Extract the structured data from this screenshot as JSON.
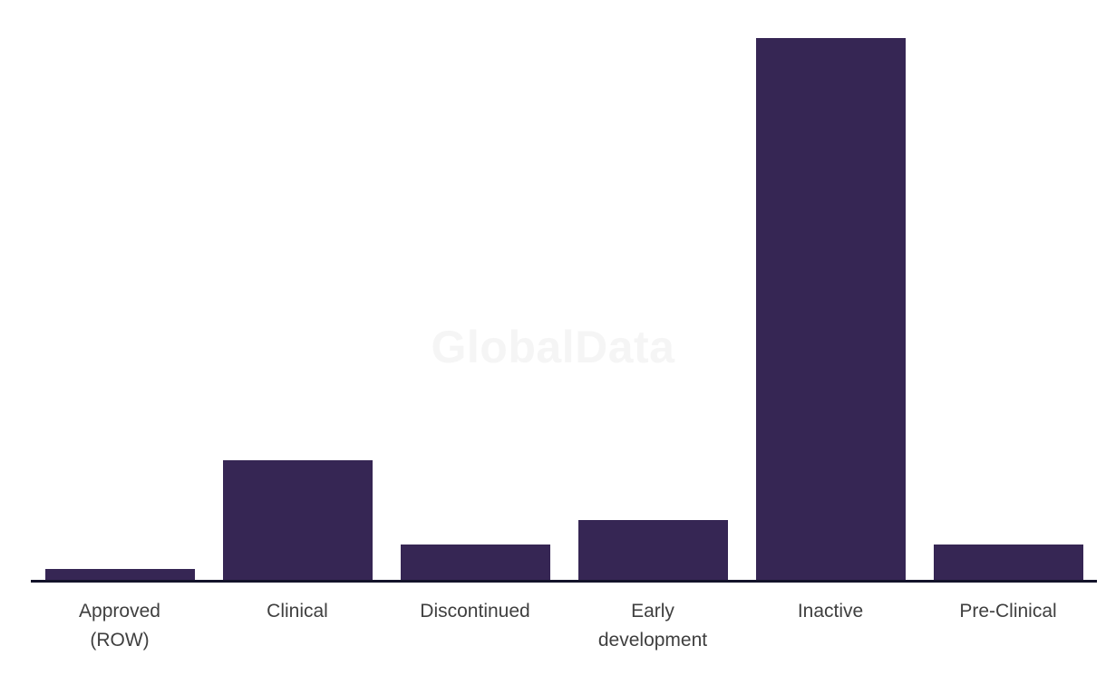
{
  "chart_data": {
    "type": "bar",
    "title": "",
    "xlabel": "",
    "ylabel": "",
    "categories": [
      "Approved (ROW)",
      "Clinical",
      "Discontinued",
      "Early development",
      "Inactive",
      "Pre-Clinical"
    ],
    "label_lines": [
      [
        "Approved",
        "(ROW)"
      ],
      [
        "Clinical"
      ],
      [
        "Discontinued"
      ],
      [
        "Early",
        "development"
      ],
      [
        "Inactive"
      ],
      [
        "Pre-Clinical"
      ]
    ],
    "values": [
      1,
      10,
      3,
      5,
      45,
      3
    ],
    "ylim": [
      0,
      45
    ],
    "grid": false,
    "legend": false,
    "y_axis_shown": false,
    "bar_color": "#362654",
    "axis_line_color": "#13132a",
    "label_color": "#3f3f3f",
    "watermark_text": "GlobalData",
    "watermark_color": "#f5f5f5",
    "background_color": "#ffffff"
  }
}
